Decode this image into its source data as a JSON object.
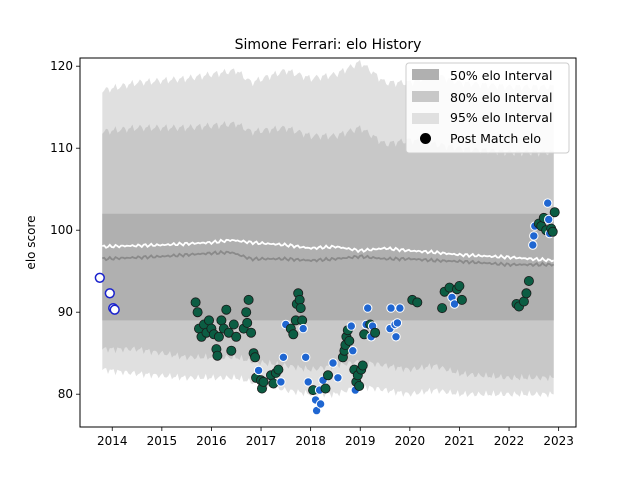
{
  "chart_data": {
    "type": "scatter",
    "title": "Simone Ferrari: elo History",
    "xlabel": "",
    "ylabel": "elo score",
    "xlim": [
      2013.35,
      2023.35
    ],
    "ylim": [
      76,
      121
    ],
    "x_ticks": [
      2014,
      2015,
      2016,
      2017,
      2018,
      2019,
      2020,
      2021,
      2022,
      2023
    ],
    "y_ticks": [
      80,
      90,
      100,
      110,
      120
    ],
    "grid": false,
    "legend": {
      "placement": "top-right",
      "entries": [
        {
          "label": "50% elo Interval",
          "color": "#b0b0b0"
        },
        {
          "label": "80% elo Interval",
          "color": "#c8c8c8"
        },
        {
          "label": "95% elo Interval",
          "color": "#e0e0e0"
        },
        {
          "label": "Post Match elo",
          "color": "#000000"
        }
      ]
    },
    "colors": {
      "band_50": "#b0b0b0",
      "band_80": "#c8c8c8",
      "band_95": "#e0e0e0",
      "mean_line": "#ffffff",
      "median_line": "#8a8a8a",
      "point_dark": "#0b5d43",
      "point_blue": "#1f66d1",
      "point_hollow": "#ffffff"
    },
    "series": [
      {
        "name": "95% elo Interval",
        "x": [
          2013.8,
          2014.5,
          2015.5,
          2016.5,
          2016.8,
          2017.5,
          2018.0,
          2018.5,
          2019.0,
          2019.5,
          2020.0,
          2020.5,
          2021.0,
          2022.0,
          2022.9
        ],
        "upper": [
          117.0,
          118.0,
          118.5,
          119.5,
          118.0,
          119.5,
          118.5,
          119.0,
          120.5,
          118.0,
          118.0,
          119.0,
          118.0,
          117.5,
          117.5
        ],
        "lower": [
          83.0,
          82.5,
          82.0,
          82.0,
          81.5,
          80.5,
          80.0,
          80.0,
          81.0,
          80.5,
          80.0,
          80.5,
          80.0,
          80.0,
          80.0
        ]
      },
      {
        "name": "80% elo Interval",
        "x": [
          2013.8,
          2014.5,
          2015.5,
          2016.5,
          2016.8,
          2017.5,
          2018.0,
          2018.5,
          2019.0,
          2019.5,
          2020.0,
          2020.5,
          2021.0,
          2022.0,
          2022.9
        ],
        "upper": [
          112.0,
          112.5,
          112.5,
          113.0,
          112.0,
          112.5,
          111.5,
          111.5,
          112.5,
          110.5,
          111.0,
          110.5,
          110.0,
          109.5,
          109.5
        ],
        "lower": [
          85.5,
          85.5,
          84.5,
          84.5,
          84.0,
          83.5,
          83.0,
          83.5,
          84.0,
          83.5,
          83.0,
          83.5,
          82.5,
          82.0,
          82.0
        ]
      },
      {
        "name": "50% elo Interval",
        "x": [
          2013.8,
          2022.9
        ],
        "upper": [
          102.0,
          102.0
        ],
        "lower": [
          89.0,
          89.0
        ]
      },
      {
        "name": "Mean elo",
        "x": [
          2013.8,
          2015.0,
          2016.0,
          2016.4,
          2016.8,
          2017.5,
          2018.0,
          2018.5,
          2019.0,
          2019.5,
          2020.0,
          2020.5,
          2021.0,
          2022.0,
          2022.9
        ],
        "y": [
          98.0,
          98.2,
          98.5,
          98.8,
          98.5,
          98.2,
          97.8,
          98.0,
          97.5,
          97.8,
          97.5,
          97.3,
          97.0,
          96.7,
          96.3
        ]
      },
      {
        "name": "Median elo",
        "x": [
          2013.8,
          2015.0,
          2016.0,
          2016.4,
          2016.8,
          2017.5,
          2018.0,
          2018.5,
          2019.0,
          2019.5,
          2020.0,
          2020.5,
          2021.0,
          2022.0,
          2022.9
        ],
        "y": [
          96.5,
          96.8,
          97.2,
          97.3,
          96.5,
          96.5,
          96.3,
          96.5,
          96.8,
          96.5,
          96.5,
          96.3,
          96.2,
          95.8,
          95.8
        ]
      },
      {
        "name": "Post Match elo",
        "points": [
          {
            "x": 2013.75,
            "y": 94.2,
            "style": "hollow"
          },
          {
            "x": 2013.95,
            "y": 92.3,
            "style": "hollow"
          },
          {
            "x": 2014.02,
            "y": 90.5,
            "style": "hollow"
          },
          {
            "x": 2014.05,
            "y": 90.3,
            "style": "hollow"
          },
          {
            "x": 2015.68,
            "y": 91.2,
            "style": "dark"
          },
          {
            "x": 2015.72,
            "y": 90.0,
            "style": "dark"
          },
          {
            "x": 2015.75,
            "y": 88.0,
            "style": "dark"
          },
          {
            "x": 2015.8,
            "y": 87.0,
            "style": "dark"
          },
          {
            "x": 2015.85,
            "y": 88.5,
            "style": "dark"
          },
          {
            "x": 2015.9,
            "y": 87.5,
            "style": "dark"
          },
          {
            "x": 2015.95,
            "y": 89.0,
            "style": "dark"
          },
          {
            "x": 2016.0,
            "y": 88.0,
            "style": "dark"
          },
          {
            "x": 2016.05,
            "y": 87.3,
            "style": "dark"
          },
          {
            "x": 2016.1,
            "y": 85.5,
            "style": "dark"
          },
          {
            "x": 2016.12,
            "y": 84.7,
            "style": "dark"
          },
          {
            "x": 2016.15,
            "y": 87.0,
            "style": "dark"
          },
          {
            "x": 2016.2,
            "y": 89.0,
            "style": "dark"
          },
          {
            "x": 2016.25,
            "y": 88.0,
            "style": "dark"
          },
          {
            "x": 2016.3,
            "y": 90.3,
            "style": "dark"
          },
          {
            "x": 2016.35,
            "y": 87.5,
            "style": "dark"
          },
          {
            "x": 2016.4,
            "y": 85.3,
            "style": "dark"
          },
          {
            "x": 2016.45,
            "y": 88.5,
            "style": "dark"
          },
          {
            "x": 2016.5,
            "y": 87.0,
            "style": "dark"
          },
          {
            "x": 2016.65,
            "y": 88.0,
            "style": "dark"
          },
          {
            "x": 2016.7,
            "y": 90.0,
            "style": "dark"
          },
          {
            "x": 2016.72,
            "y": 88.7,
            "style": "dark"
          },
          {
            "x": 2016.75,
            "y": 91.5,
            "style": "dark"
          },
          {
            "x": 2016.8,
            "y": 87.5,
            "style": "dark"
          },
          {
            "x": 2016.85,
            "y": 85.0,
            "style": "dark"
          },
          {
            "x": 2016.88,
            "y": 84.5,
            "style": "dark"
          },
          {
            "x": 2016.9,
            "y": 82.0,
            "style": "dark"
          },
          {
            "x": 2016.95,
            "y": 82.9,
            "style": "blue"
          },
          {
            "x": 2017.0,
            "y": 81.7,
            "style": "dark"
          },
          {
            "x": 2017.02,
            "y": 80.7,
            "style": "dark"
          },
          {
            "x": 2017.05,
            "y": 81.5,
            "style": "dark"
          },
          {
            "x": 2017.2,
            "y": 82.3,
            "style": "dark"
          },
          {
            "x": 2017.25,
            "y": 81.3,
            "style": "dark"
          },
          {
            "x": 2017.3,
            "y": 82.6,
            "style": "dark"
          },
          {
            "x": 2017.35,
            "y": 83.0,
            "style": "dark"
          },
          {
            "x": 2017.4,
            "y": 81.5,
            "style": "blue"
          },
          {
            "x": 2017.45,
            "y": 84.5,
            "style": "blue"
          },
          {
            "x": 2017.5,
            "y": 88.5,
            "style": "blue"
          },
          {
            "x": 2017.6,
            "y": 88.0,
            "style": "dark"
          },
          {
            "x": 2017.65,
            "y": 87.3,
            "style": "dark"
          },
          {
            "x": 2017.7,
            "y": 89.0,
            "style": "dark"
          },
          {
            "x": 2017.72,
            "y": 91.0,
            "style": "dark"
          },
          {
            "x": 2017.75,
            "y": 92.3,
            "style": "dark"
          },
          {
            "x": 2017.78,
            "y": 91.5,
            "style": "dark"
          },
          {
            "x": 2017.8,
            "y": 90.5,
            "style": "dark"
          },
          {
            "x": 2017.83,
            "y": 89.0,
            "style": "dark"
          },
          {
            "x": 2017.85,
            "y": 88.0,
            "style": "blue"
          },
          {
            "x": 2017.9,
            "y": 84.5,
            "style": "blue"
          },
          {
            "x": 2017.95,
            "y": 81.5,
            "style": "blue"
          },
          {
            "x": 2018.05,
            "y": 80.5,
            "style": "dark"
          },
          {
            "x": 2018.1,
            "y": 79.3,
            "style": "blue"
          },
          {
            "x": 2018.12,
            "y": 78.0,
            "style": "blue"
          },
          {
            "x": 2018.18,
            "y": 80.5,
            "style": "blue"
          },
          {
            "x": 2018.2,
            "y": 78.8,
            "style": "blue"
          },
          {
            "x": 2018.25,
            "y": 81.7,
            "style": "blue"
          },
          {
            "x": 2018.3,
            "y": 80.7,
            "style": "dark"
          },
          {
            "x": 2018.35,
            "y": 82.3,
            "style": "dark"
          },
          {
            "x": 2018.45,
            "y": 83.8,
            "style": "blue"
          },
          {
            "x": 2018.55,
            "y": 82.0,
            "style": "blue"
          },
          {
            "x": 2018.65,
            "y": 84.5,
            "style": "dark"
          },
          {
            "x": 2018.68,
            "y": 85.3,
            "style": "dark"
          },
          {
            "x": 2018.7,
            "y": 86.0,
            "style": "dark"
          },
          {
            "x": 2018.72,
            "y": 87.0,
            "style": "dark"
          },
          {
            "x": 2018.75,
            "y": 87.8,
            "style": "dark"
          },
          {
            "x": 2018.78,
            "y": 86.5,
            "style": "dark"
          },
          {
            "x": 2018.82,
            "y": 88.3,
            "style": "blue"
          },
          {
            "x": 2018.85,
            "y": 85.3,
            "style": "blue"
          },
          {
            "x": 2018.88,
            "y": 83.0,
            "style": "dark"
          },
          {
            "x": 2018.9,
            "y": 80.5,
            "style": "blue"
          },
          {
            "x": 2018.92,
            "y": 81.5,
            "style": "dark"
          },
          {
            "x": 2018.95,
            "y": 82.3,
            "style": "dark"
          },
          {
            "x": 2018.98,
            "y": 81.0,
            "style": "dark"
          },
          {
            "x": 2019.02,
            "y": 83.0,
            "style": "dark"
          },
          {
            "x": 2019.05,
            "y": 83.5,
            "style": "dark"
          },
          {
            "x": 2019.08,
            "y": 87.3,
            "style": "dark"
          },
          {
            "x": 2019.12,
            "y": 88.5,
            "style": "blue"
          },
          {
            "x": 2019.15,
            "y": 90.5,
            "style": "blue"
          },
          {
            "x": 2019.2,
            "y": 88.5,
            "style": "dark"
          },
          {
            "x": 2019.22,
            "y": 87.0,
            "style": "blue"
          },
          {
            "x": 2019.25,
            "y": 88.3,
            "style": "blue"
          },
          {
            "x": 2019.3,
            "y": 87.5,
            "style": "dark"
          },
          {
            "x": 2019.6,
            "y": 88.0,
            "style": "blue"
          },
          {
            "x": 2019.62,
            "y": 90.5,
            "style": "blue"
          },
          {
            "x": 2019.7,
            "y": 88.5,
            "style": "blue"
          },
          {
            "x": 2019.72,
            "y": 87.0,
            "style": "blue"
          },
          {
            "x": 2019.75,
            "y": 88.7,
            "style": "blue"
          },
          {
            "x": 2019.8,
            "y": 90.5,
            "style": "blue"
          },
          {
            "x": 2020.05,
            "y": 91.5,
            "style": "dark"
          },
          {
            "x": 2020.15,
            "y": 91.2,
            "style": "dark"
          },
          {
            "x": 2020.65,
            "y": 90.5,
            "style": "dark"
          },
          {
            "x": 2020.7,
            "y": 92.5,
            "style": "dark"
          },
          {
            "x": 2020.8,
            "y": 93.0,
            "style": "dark"
          },
          {
            "x": 2020.85,
            "y": 91.8,
            "style": "blue"
          },
          {
            "x": 2020.9,
            "y": 91.0,
            "style": "blue"
          },
          {
            "x": 2020.95,
            "y": 92.8,
            "style": "dark"
          },
          {
            "x": 2021.0,
            "y": 93.2,
            "style": "dark"
          },
          {
            "x": 2021.05,
            "y": 91.5,
            "style": "dark"
          },
          {
            "x": 2022.15,
            "y": 91.0,
            "style": "dark"
          },
          {
            "x": 2022.2,
            "y": 90.7,
            "style": "dark"
          },
          {
            "x": 2022.3,
            "y": 91.3,
            "style": "dark"
          },
          {
            "x": 2022.35,
            "y": 92.3,
            "style": "dark"
          },
          {
            "x": 2022.4,
            "y": 93.8,
            "style": "dark"
          },
          {
            "x": 2022.48,
            "y": 98.2,
            "style": "blue"
          },
          {
            "x": 2022.5,
            "y": 99.3,
            "style": "blue"
          },
          {
            "x": 2022.52,
            "y": 100.5,
            "style": "blue"
          },
          {
            "x": 2022.6,
            "y": 100.8,
            "style": "dark"
          },
          {
            "x": 2022.65,
            "y": 100.5,
            "style": "dark"
          },
          {
            "x": 2022.7,
            "y": 101.5,
            "style": "dark"
          },
          {
            "x": 2022.75,
            "y": 100.0,
            "style": "dark"
          },
          {
            "x": 2022.78,
            "y": 103.3,
            "style": "blue"
          },
          {
            "x": 2022.8,
            "y": 101.3,
            "style": "blue"
          },
          {
            "x": 2022.82,
            "y": 99.6,
            "style": "blue"
          },
          {
            "x": 2022.85,
            "y": 100.2,
            "style": "dark"
          },
          {
            "x": 2022.88,
            "y": 99.8,
            "style": "dark"
          },
          {
            "x": 2022.92,
            "y": 102.2,
            "style": "dark"
          }
        ]
      }
    ]
  }
}
